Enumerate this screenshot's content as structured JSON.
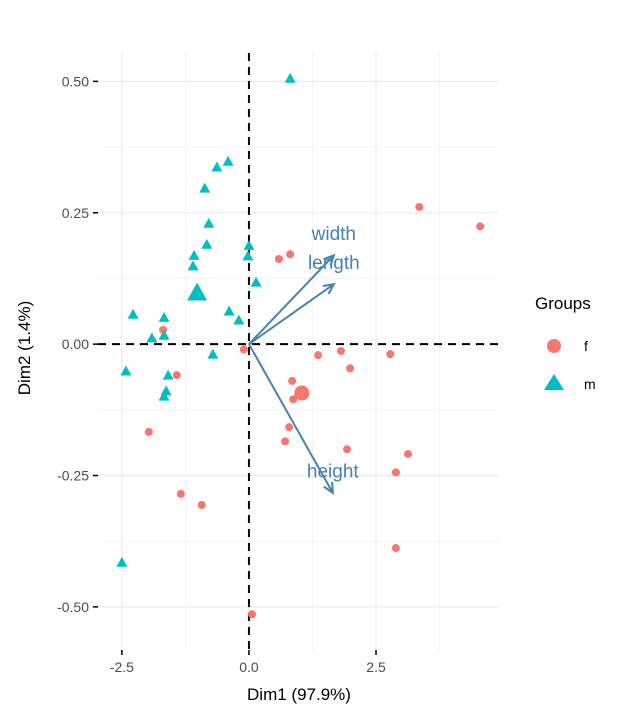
{
  "chart_data": {
    "type": "scatter",
    "title": "",
    "xlabel": "Dim1 (97.9%)",
    "ylabel": "Dim2 (1.4%)",
    "xlim": [
      -2.97,
      4.9
    ],
    "ylim": [
      -0.582,
      0.554
    ],
    "xticks": [
      -2.5,
      0.0,
      2.5
    ],
    "xtick_labels": [
      "-2.5",
      "0.0",
      "2.5"
    ],
    "yticks": [
      -0.5,
      -0.25,
      0.0,
      0.25,
      0.5
    ],
    "ytick_labels": [
      "-0.50",
      "-0.25",
      "0.00",
      "0.25",
      "0.50"
    ],
    "grid": true,
    "reference_lines": {
      "x": 0,
      "y": 0,
      "style": "dashed"
    },
    "legend": {
      "title": "Groups",
      "placement": "right",
      "entries": [
        {
          "label": "f",
          "shape": "circle",
          "color": "#F8766D"
        },
        {
          "label": "m",
          "shape": "triangle",
          "color": "#00BFC4"
        }
      ]
    },
    "series": [
      {
        "name": "f",
        "shape": "circle",
        "color": "#F8766D",
        "points": [
          [
            -1.69,
            0.027
          ],
          [
            -1.42,
            -0.059
          ],
          [
            -0.1,
            -0.01
          ],
          [
            -1.97,
            -0.167
          ],
          [
            -1.34,
            -0.285
          ],
          [
            -0.93,
            -0.306
          ],
          [
            0.06,
            -0.514
          ],
          [
            0.59,
            0.162
          ],
          [
            0.81,
            0.171
          ],
          [
            3.35,
            0.261
          ],
          [
            4.55,
            0.224
          ],
          [
            1.36,
            -0.021
          ],
          [
            1.81,
            -0.013
          ],
          [
            2.78,
            -0.019
          ],
          [
            1.99,
            -0.046
          ],
          [
            0.85,
            -0.07
          ],
          [
            0.87,
            -0.105
          ],
          [
            0.79,
            -0.158
          ],
          [
            0.71,
            -0.185
          ],
          [
            1.93,
            -0.2
          ],
          [
            3.13,
            -0.209
          ],
          [
            2.89,
            -0.244
          ],
          [
            2.89,
            -0.388
          ]
        ],
        "centroid": [
          1.04,
          -0.093
        ]
      },
      {
        "name": "m",
        "shape": "triangle",
        "color": "#00BFC4",
        "points": [
          [
            0.81,
            0.504
          ],
          [
            -0.41,
            0.346
          ],
          [
            -0.63,
            0.335
          ],
          [
            -0.87,
            0.295
          ],
          [
            -0.79,
            0.228
          ],
          [
            -0.83,
            0.188
          ],
          [
            -1.08,
            0.167
          ],
          [
            -1.1,
            0.147
          ],
          [
            0.0,
            0.186
          ],
          [
            -0.02,
            0.166
          ],
          [
            0.14,
            0.116
          ],
          [
            -0.39,
            0.061
          ],
          [
            -0.2,
            0.044
          ],
          [
            -2.28,
            0.055
          ],
          [
            -1.67,
            0.049
          ],
          [
            -1.67,
            0.015
          ],
          [
            -1.91,
            0.01
          ],
          [
            -0.71,
            -0.021
          ],
          [
            -2.42,
            -0.053
          ],
          [
            -1.59,
            -0.061
          ],
          [
            -1.63,
            -0.091
          ],
          [
            -1.67,
            -0.101
          ],
          [
            -2.5,
            -0.417
          ]
        ],
        "centroid": [
          -1.02,
          0.095
        ]
      }
    ],
    "variables": {
      "color": "#4682B4",
      "arrows": [
        {
          "name": "width",
          "x": 1.67,
          "y": 0.169,
          "label_x": 1.67,
          "label_y": 0.208
        },
        {
          "name": "length",
          "x": 1.67,
          "y": 0.114,
          "label_x": 1.67,
          "label_y": 0.153
        },
        {
          "name": "height",
          "x": 1.65,
          "y": -0.283,
          "label_x": 1.65,
          "label_y": -0.244
        }
      ]
    }
  }
}
